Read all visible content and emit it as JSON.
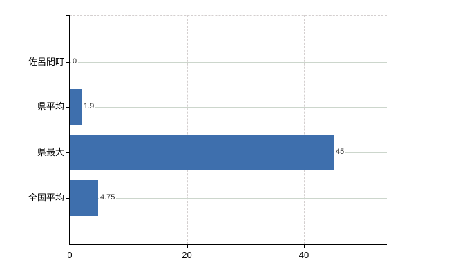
{
  "chart_data": {
    "type": "bar",
    "orientation": "horizontal",
    "title": "",
    "xlabel": "",
    "ylabel": "",
    "categories": [
      "佐呂間町",
      "県平均",
      "県最大",
      "全国平均"
    ],
    "values": [
      0,
      1.9,
      45,
      4.75
    ],
    "value_labels": [
      "0",
      "1.9",
      "45",
      "4.75"
    ],
    "xticks": [
      0,
      20,
      40
    ],
    "xtick_labels": [
      "0",
      "20",
      "40"
    ],
    "xlim": [
      0,
      54.2
    ],
    "grid": true,
    "legend": false,
    "colors": {
      "bar": "#3E6FAD",
      "axis": "#000000",
      "h_gridline": "#ccd6cc",
      "v_gridline_dashed": "#d4cfcf",
      "category_text": "#000000",
      "value_text": "#2b2b2b",
      "tick_text": "#000000",
      "background": "#ffffff"
    }
  }
}
